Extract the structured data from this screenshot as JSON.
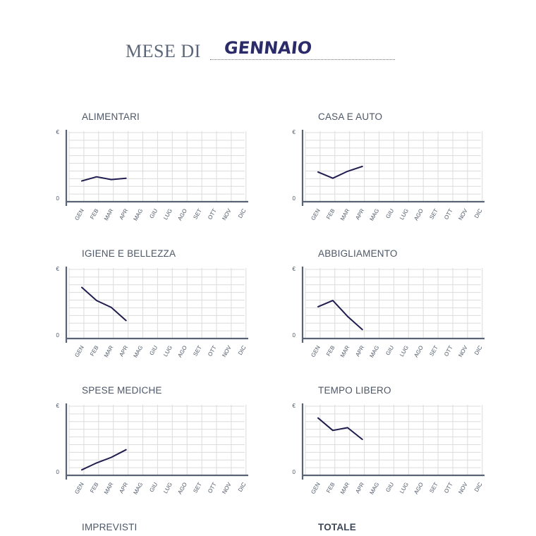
{
  "header": {
    "prefix": "MESE DI",
    "month": "GENNAIO"
  },
  "axis": {
    "y_top_label": "€",
    "y_bottom_label": "0",
    "months": [
      "GEN",
      "FEB",
      "MAR",
      "APR",
      "MAG",
      "GIU",
      "LUG",
      "AGO",
      "SET",
      "OTT",
      "NOV",
      "DIC"
    ]
  },
  "colors": {
    "line": "#1f1d4e",
    "grid": "#dcdcdc",
    "axis": "#5a6475",
    "text": "#4d5766"
  },
  "chart_data": [
    {
      "type": "line",
      "title": "ALIMENTARI",
      "xlabel": "",
      "ylabel": "€",
      "ylim": [
        0,
        10
      ],
      "grid": true,
      "categories": [
        "GEN",
        "FEB",
        "MAR",
        "APR",
        "MAG",
        "GIU",
        "LUG",
        "AGO",
        "SET",
        "OTT",
        "NOV",
        "DIC"
      ],
      "values": [
        3.0,
        3.6,
        3.2,
        3.4,
        null,
        null,
        null,
        null,
        null,
        null,
        null,
        null
      ]
    },
    {
      "type": "line",
      "title": "CASA E AUTO",
      "xlabel": "",
      "ylabel": "€",
      "ylim": [
        0,
        10
      ],
      "grid": true,
      "categories": [
        "GEN",
        "FEB",
        "MAR",
        "APR",
        "MAG",
        "GIU",
        "LUG",
        "AGO",
        "SET",
        "OTT",
        "NOV",
        "DIC"
      ],
      "values": [
        4.3,
        3.4,
        4.4,
        5.1,
        null,
        null,
        null,
        null,
        null,
        null,
        null,
        null
      ]
    },
    {
      "type": "line",
      "title": "IGIENE E BELLEZZA",
      "xlabel": "",
      "ylabel": "€",
      "ylim": [
        0,
        10
      ],
      "grid": true,
      "categories": [
        "GEN",
        "FEB",
        "MAR",
        "APR",
        "MAG",
        "GIU",
        "LUG",
        "AGO",
        "SET",
        "OTT",
        "NOV",
        "DIC"
      ],
      "values": [
        7.4,
        5.5,
        4.5,
        2.6,
        null,
        null,
        null,
        null,
        null,
        null,
        null,
        null
      ]
    },
    {
      "type": "line",
      "title": "ABBIGLIAMENTO",
      "xlabel": "",
      "ylabel": "€",
      "ylim": [
        0,
        10
      ],
      "grid": true,
      "categories": [
        "GEN",
        "FEB",
        "MAR",
        "APR",
        "MAG",
        "GIU",
        "LUG",
        "AGO",
        "SET",
        "OTT",
        "NOV",
        "DIC"
      ],
      "values": [
        4.6,
        5.5,
        3.2,
        1.3,
        null,
        null,
        null,
        null,
        null,
        null,
        null,
        null
      ]
    },
    {
      "type": "line",
      "title": "SPESE MEDICHE",
      "xlabel": "",
      "ylabel": "€",
      "ylim": [
        0,
        10
      ],
      "grid": true,
      "categories": [
        "GEN",
        "FEB",
        "MAR",
        "APR",
        "MAG",
        "GIU",
        "LUG",
        "AGO",
        "SET",
        "OTT",
        "NOV",
        "DIC"
      ],
      "values": [
        0.8,
        1.8,
        2.6,
        3.7,
        null,
        null,
        null,
        null,
        null,
        null,
        null,
        null
      ]
    },
    {
      "type": "line",
      "title": "TEMPO LIBERO",
      "xlabel": "",
      "ylabel": "€",
      "ylim": [
        0,
        10
      ],
      "grid": true,
      "categories": [
        "GEN",
        "FEB",
        "MAR",
        "APR",
        "MAG",
        "GIU",
        "LUG",
        "AGO",
        "SET",
        "OTT",
        "NOV",
        "DIC"
      ],
      "values": [
        8.3,
        6.5,
        6.9,
        5.2,
        null,
        null,
        null,
        null,
        null,
        null,
        null,
        null
      ]
    },
    {
      "type": "line",
      "title": "IMPREVISTI",
      "xlabel": "",
      "ylabel": "",
      "grid": true,
      "categories": [],
      "values": []
    },
    {
      "type": "line",
      "title": "TOTALE",
      "xlabel": "",
      "ylabel": "",
      "grid": true,
      "categories": [],
      "values": []
    }
  ]
}
